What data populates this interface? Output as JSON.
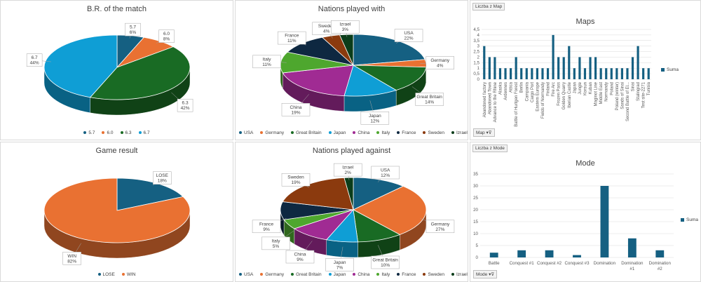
{
  "colors": {
    "USA": "#156082",
    "Germany": "#e97132",
    "Great Britain": "#196b24",
    "Japan": "#0f9ed5",
    "China": "#a02b93",
    "Italy": "#4ea72e",
    "France": "#0e2841",
    "Sweden": "#8b3a0e",
    "Izrael": "#0b3d1a",
    "bar": "#156082"
  },
  "panels": {
    "br": {
      "title": "B.R. of the match"
    },
    "nations_with": {
      "title": "Nations played with"
    },
    "maps": {
      "title": "Maps",
      "field_tag": "Liczba z Map",
      "filter": "Map",
      "legend": "Suma"
    },
    "game_result": {
      "title": "Game result"
    },
    "nations_against": {
      "title": "Nations played against"
    },
    "mode": {
      "title": "Mode",
      "field_tag": "Liczba z Mode",
      "filter": "Mode",
      "legend": "Suma"
    }
  },
  "chart_data": [
    {
      "id": "br",
      "type": "pie",
      "title": "B.R. of the match",
      "slices": [
        {
          "label": "5.7",
          "value": 6,
          "pct": "6%"
        },
        {
          "label": "6.0",
          "value": 8,
          "pct": "8%"
        },
        {
          "label": "6.3",
          "value": 42,
          "pct": "42%"
        },
        {
          "label": "6.7",
          "value": 44,
          "pct": "44%"
        }
      ],
      "slice_colors": [
        "#156082",
        "#e97132",
        "#196b24",
        "#0f9ed5"
      ],
      "legend": [
        "5.7",
        "6.0",
        "6.3",
        "6.7"
      ],
      "legend_position": "bottom"
    },
    {
      "id": "nations_with",
      "type": "pie",
      "title": "Nations played with",
      "slices": [
        {
          "label": "USA",
          "value": 22,
          "pct": "22%"
        },
        {
          "label": "Germany",
          "value": 4,
          "pct": "4%"
        },
        {
          "label": "Great Britain",
          "value": 14,
          "pct": "14%"
        },
        {
          "label": "Japan",
          "value": 12,
          "pct": "12%"
        },
        {
          "label": "China",
          "value": 19,
          "pct": "19%"
        },
        {
          "label": "Italy",
          "value": 11,
          "pct": "11%"
        },
        {
          "label": "France",
          "value": 11,
          "pct": "11%"
        },
        {
          "label": "Sweden",
          "value": 4,
          "pct": "4%"
        },
        {
          "label": "Izrael",
          "value": 3,
          "pct": "3%"
        }
      ],
      "legend": [
        "USA",
        "Germany",
        "Great Britain",
        "Japan",
        "China",
        "Italy",
        "France",
        "Sweden",
        "Izrael"
      ],
      "legend_position": "bottom"
    },
    {
      "id": "maps",
      "type": "bar",
      "title": "Maps",
      "categories": [
        "Abandoned factory",
        "Abandoned Town",
        "Advance to the Rhine",
        "Alaska",
        "Ardennes",
        "Attica",
        "Battle of Hurtgen Forest",
        "Berlin",
        "Campania",
        "Cargo Port",
        "Eastern Europe",
        "Fields of Normandy",
        "Finland",
        "Fire Arc",
        "Frozen Pass",
        "Golden Quarry",
        "Iberian Castle",
        "Japan",
        "Jungle",
        "Korsun",
        "Kuban",
        "Maginot Line",
        "Middle East",
        "Normandy",
        "Poland",
        "Poland (winter)",
        "Sands of Sinai",
        "Second Battle of El...",
        "Sinai",
        "Stalingrad",
        "Test site-2271",
        "Tunisia"
      ],
      "values": [
        3,
        2,
        2,
        1,
        1,
        1,
        2,
        1,
        1,
        1,
        1,
        1,
        1,
        4,
        2,
        2,
        3,
        1,
        2,
        1,
        2,
        2,
        1,
        1,
        1,
        1,
        1,
        1,
        2,
        3,
        1,
        1
      ],
      "ylim": [
        0,
        4.5
      ],
      "yticks": [
        "0",
        "0,5",
        "1",
        "1,5",
        "2",
        "2,5",
        "3",
        "3,5",
        "4",
        "4,5"
      ],
      "ytick_values": [
        0,
        0.5,
        1,
        1.5,
        2,
        2.5,
        3,
        3.5,
        4,
        4.5
      ],
      "legend": "Suma",
      "grid": true
    },
    {
      "id": "game_result",
      "type": "pie",
      "title": "Game result",
      "slices": [
        {
          "label": "LOSE",
          "value": 18,
          "pct": "18%"
        },
        {
          "label": "WIN",
          "value": 82,
          "pct": "82%"
        }
      ],
      "slice_colors": [
        "#156082",
        "#e97132"
      ],
      "legend": [
        "LOSE",
        "WIN"
      ],
      "legend_position": "bottom"
    },
    {
      "id": "nations_against",
      "type": "pie",
      "title": "Nations played against",
      "slices": [
        {
          "label": "USA",
          "value": 12,
          "pct": "12%"
        },
        {
          "label": "Germany",
          "value": 27,
          "pct": "27%"
        },
        {
          "label": "Great Britain",
          "value": 10,
          "pct": "10%"
        },
        {
          "label": "Japan",
          "value": 7,
          "pct": "7%"
        },
        {
          "label": "China",
          "value": 9,
          "pct": "9%"
        },
        {
          "label": "Italy",
          "value": 5,
          "pct": "5%"
        },
        {
          "label": "France",
          "value": 9,
          "pct": "9%"
        },
        {
          "label": "Sweden",
          "value": 19,
          "pct": "19%"
        },
        {
          "label": "Izrael",
          "value": 2,
          "pct": "2%"
        }
      ],
      "legend": [
        "USA",
        "Germany",
        "Great Britain",
        "Japan",
        "China",
        "Italy",
        "France",
        "Sweden",
        "Izrael"
      ],
      "legend_position": "bottom"
    },
    {
      "id": "mode",
      "type": "bar",
      "title": "Mode",
      "categories": [
        "Battle",
        "Conquest #1",
        "Conquest #2",
        "Conquest #3",
        "Domination",
        "Domination #1",
        "Domination #2"
      ],
      "values": [
        2,
        3,
        3,
        1,
        30,
        8,
        3
      ],
      "ylim": [
        0,
        35
      ],
      "yticks": [
        "0",
        "5",
        "10",
        "15",
        "20",
        "25",
        "30",
        "35"
      ],
      "ytick_values": [
        0,
        5,
        10,
        15,
        20,
        25,
        30,
        35
      ],
      "legend": "Suma",
      "grid": true
    }
  ]
}
